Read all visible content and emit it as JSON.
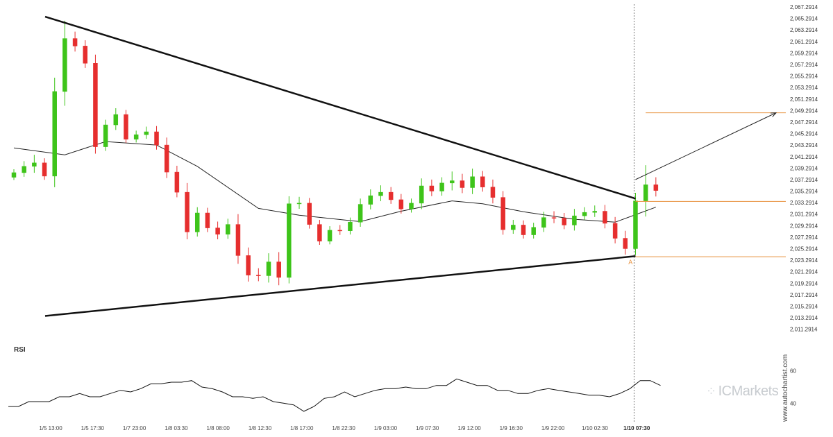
{
  "chart_data": {
    "type": "candlestick",
    "price_axis": {
      "ylim": [
        2010.2914,
        2067.2914
      ],
      "tick_labels": [
        "2,067.2914",
        "2,065.2914",
        "2,063.2914",
        "2,061.2914",
        "2,059.2914",
        "2,057.2914",
        "2,055.2914",
        "2,053.2914",
        "2,051.2914",
        "2,049.2914",
        "2,047.2914",
        "2,045.2914",
        "2,043.2914",
        "2,041.2914",
        "2,039.2914",
        "2,037.2914",
        "2,035.2914",
        "2,033.2914",
        "2,031.2914",
        "2,029.2914",
        "2,027.2914",
        "2,025.2914",
        "2,023.2914",
        "2,021.2914",
        "2,019.2914",
        "2,017.2914",
        "2,015.2914",
        "2,013.2914",
        "2,011.2914"
      ]
    },
    "time_axis": {
      "tick_labels": [
        "1/5 13:00",
        "1/5 17:30",
        "1/7 23:00",
        "1/8 03:30",
        "1/8 08:00",
        "1/8 12:30",
        "1/8 17:00",
        "1/8 22:30",
        "1/9 03:00",
        "1/9 07:30",
        "1/9 12:00",
        "1/9 16:30",
        "1/9 22:00",
        "1/10 02:30",
        "1/10 07:30"
      ],
      "highlight_label": "1/10 07:30"
    },
    "candle_colors": {
      "up": "#3ec41a",
      "down": "#e62e2e"
    },
    "candle_path": [
      2038.5,
      2039.6,
      2040.2,
      2037.9,
      2052.6,
      2061.8,
      2060.5,
      2057.5,
      2043.0,
      2046.8,
      2048.6,
      2044.3,
      2045.1,
      2045.6,
      2043.3,
      2038.6,
      2035.1,
      2028.2,
      2031.5,
      2028.9,
      2027.8,
      2029.5,
      2024.1,
      2020.7,
      2020.6,
      2023.0,
      2020.3,
      2033.1,
      2033.2,
      2029.5,
      2026.6,
      2028.5,
      2028.4,
      2029.9,
      2033.0,
      2034.5,
      2035.1,
      2033.8,
      2032.2,
      2033.2,
      2036.2,
      2035.3,
      2036.7,
      2037.1,
      2035.9,
      2037.8,
      2036.0,
      2034.2,
      2028.6,
      2029.4,
      2027.7,
      2029.0,
      2030.7,
      2030.6,
      2029.4,
      2031.0,
      2031.6,
      2031.8,
      2029.7,
      2027.1,
      2025.3,
      2033.6,
      2036.4,
      2035.4
    ],
    "candle_wick": [
      0.6,
      0.9,
      1.4,
      0.8,
      2.4,
      3.1,
      1.2,
      1.0,
      1.5,
      0.9,
      1.1,
      0.8,
      0.7,
      0.9,
      1.0,
      1.3,
      1.1,
      1.6,
      1.0,
      0.9,
      1.1,
      1.0,
      1.8,
      1.4,
      1.2,
      1.5,
      1.7,
      1.3,
      1.1,
      0.9,
      0.8,
      0.7,
      0.9,
      0.8,
      1.0,
      1.1,
      1.2,
      0.9,
      1.0,
      0.8,
      1.3,
      1.1,
      1.0,
      1.6,
      1.2,
      1.4,
      1.0,
      1.3,
      1.1,
      0.9,
      0.8,
      0.8,
      1.0,
      1.1,
      0.9,
      1.2,
      0.9,
      1.0,
      1.1,
      1.1,
      1.3,
      1.4,
      3.4,
      1.3
    ],
    "moving_average": {
      "x_index": [
        0,
        5,
        9,
        14,
        18,
        24,
        28,
        34,
        38,
        43,
        46,
        50,
        55,
        59,
        61,
        63
      ],
      "values": [
        2042.8,
        2041.6,
        2043.9,
        2043.3,
        2039.6,
        2032.3,
        2031.1,
        2030.0,
        2031.8,
        2033.6,
        2033.1,
        2031.7,
        2030.4,
        2029.9,
        2031.2,
        2032.5
      ]
    },
    "patterns": [
      {
        "name": "descending resistance",
        "from": {
          "index": 0,
          "price": 2065.6
        },
        "to": {
          "index": 61,
          "price": 2034.0
        }
      },
      {
        "name": "ascending support",
        "from": {
          "index": 0,
          "price": 2013.6
        },
        "to": {
          "index": 61,
          "price": 2024.0
        }
      }
    ],
    "levels": [
      {
        "price": 2048.9,
        "color": "#e8913d",
        "from_index": 62
      },
      {
        "price": 2033.5,
        "color": "#e8913d",
        "from_index": 61
      },
      {
        "price": 2023.9,
        "color": "#e8913d",
        "from_index": 61
      }
    ],
    "projection": {
      "from": {
        "index": 61,
        "price": 2037.3
      },
      "to": {
        "index": 75,
        "price": 2048.9
      }
    },
    "point_label": {
      "text": "A",
      "index": 60.3,
      "color": "#e8913d"
    },
    "rsi": {
      "title": "RSI",
      "ylim": [
        32,
        62
      ],
      "tick_labels": [
        "60",
        "40"
      ],
      "tick_values": [
        60,
        40
      ],
      "values": [
        38,
        38,
        41,
        41,
        41,
        44,
        44,
        46,
        44,
        44,
        46,
        48,
        47,
        49,
        52,
        52,
        53,
        53,
        54,
        50,
        49,
        47,
        44,
        44,
        43,
        44,
        41,
        40,
        39,
        35,
        38,
        43,
        44,
        47,
        44,
        46,
        48,
        49,
        49,
        50,
        49,
        49,
        51,
        51,
        55,
        53,
        51,
        51,
        48,
        48,
        46,
        46,
        48,
        49,
        48,
        47,
        46,
        45,
        45,
        44,
        46,
        49,
        54,
        54,
        51
      ]
    }
  },
  "labels": {
    "rsi_title": "RSI",
    "watermark": "ICMarkets",
    "credit": "www.autochartist.com"
  }
}
